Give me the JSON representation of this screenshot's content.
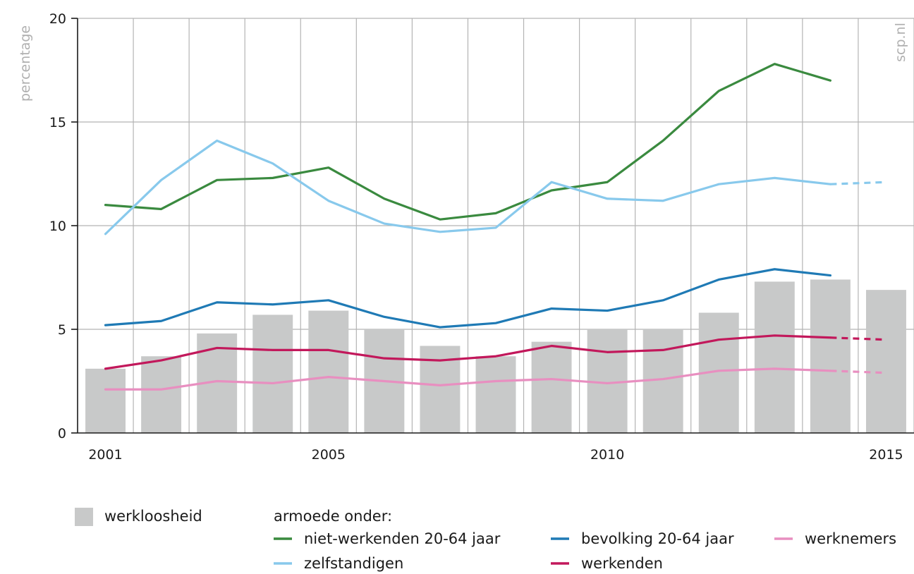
{
  "chart_data": {
    "type": "bar+line",
    "ylabel": "percentage",
    "source": "scp.nl",
    "ylim": [
      0,
      20
    ],
    "yticks": [
      0,
      5,
      10,
      15,
      20
    ],
    "xticks": [
      2001,
      2005,
      2010,
      2015
    ],
    "grid": "on",
    "x": [
      2001,
      2002,
      2003,
      2004,
      2005,
      2006,
      2007,
      2008,
      2009,
      2010,
      2011,
      2012,
      2013,
      2014,
      2015
    ],
    "bars": {
      "name": "werkloosheid",
      "color": "#c8c9c9",
      "values": [
        3.1,
        3.7,
        4.8,
        5.7,
        5.9,
        5.0,
        4.2,
        3.7,
        4.4,
        5.0,
        5.0,
        5.8,
        7.3,
        7.4,
        6.9
      ]
    },
    "legend_heading": "armoede onder:",
    "series": [
      {
        "name": "niet-werkenden 20-64 jaar",
        "color": "#3a8a3f",
        "values": [
          11.0,
          10.8,
          12.2,
          12.3,
          12.8,
          11.3,
          10.3,
          10.6,
          11.7,
          12.1,
          14.1,
          16.5,
          17.8,
          17.0,
          null
        ],
        "projected": []
      },
      {
        "name": "zelfstandigen",
        "color": "#88c9ec",
        "values": [
          9.6,
          12.2,
          14.1,
          13.0,
          11.2,
          10.1,
          9.7,
          9.9,
          12.1,
          11.3,
          11.2,
          12.0,
          12.3,
          12.0,
          null
        ],
        "projected": [
          [
            2014,
            12.0
          ],
          [
            2015,
            12.1
          ]
        ]
      },
      {
        "name": "bevolking 20-64 jaar",
        "color": "#1f7ab5",
        "values": [
          5.2,
          5.4,
          6.3,
          6.2,
          6.4,
          5.6,
          5.1,
          5.3,
          6.0,
          5.9,
          6.4,
          7.4,
          7.9,
          7.6,
          null
        ],
        "projected": []
      },
      {
        "name": "werkenden",
        "color": "#c2185b",
        "values": [
          3.1,
          3.5,
          4.1,
          4.0,
          4.0,
          3.6,
          3.5,
          3.7,
          4.2,
          3.9,
          4.0,
          4.5,
          4.7,
          4.6,
          null
        ],
        "projected": [
          [
            2014,
            4.6
          ],
          [
            2015,
            4.5
          ]
        ]
      },
      {
        "name": "werknemers",
        "color": "#e88fc0",
        "values": [
          2.1,
          2.1,
          2.5,
          2.4,
          2.7,
          2.5,
          2.3,
          2.5,
          2.6,
          2.4,
          2.6,
          3.0,
          3.1,
          3.0,
          null
        ],
        "projected": [
          [
            2014,
            3.0
          ],
          [
            2015,
            2.9
          ]
        ]
      }
    ]
  }
}
